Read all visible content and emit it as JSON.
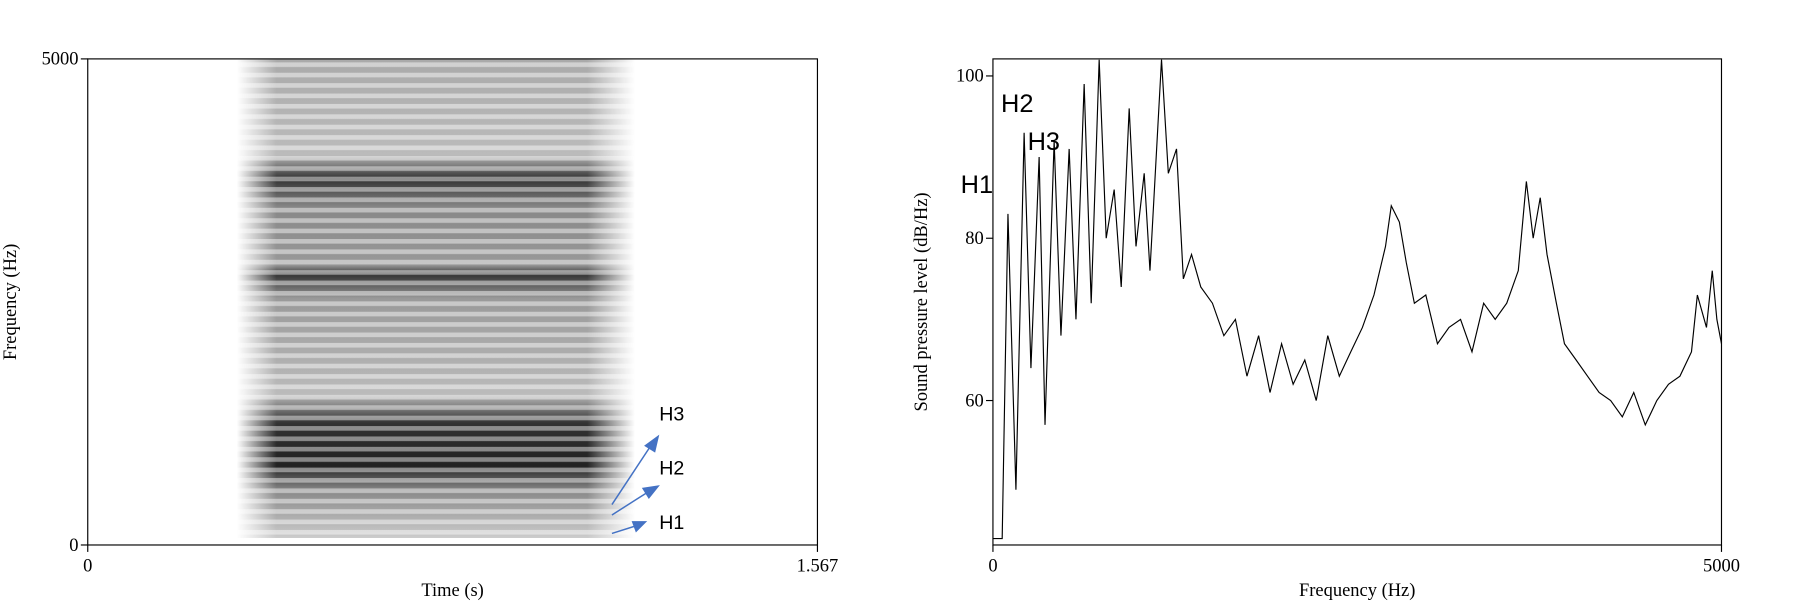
{
  "chart_data": [
    {
      "type": "spectrogram",
      "xlabel": "Time (s)",
      "ylabel": "Frequency (Hz)",
      "xlim": [
        0,
        1.567
      ],
      "ylim": [
        0,
        5000
      ],
      "xticks": [
        0,
        1.567
      ],
      "yticks": [
        0,
        5000
      ],
      "annotations": [
        "H3",
        "H2",
        "H1"
      ],
      "annotation_color": "#ff0000",
      "arrow_color": "#4472c4"
    },
    {
      "type": "line",
      "xlabel": "Frequency (Hz)",
      "ylabel": "Sound pressure level (dB/Hz)",
      "xlim": [
        0,
        5000
      ],
      "ylim": [
        42.2,
        102.1
      ],
      "xticks": [
        0,
        5000
      ],
      "yticks": [
        60,
        80,
        100
      ],
      "color": "#000000",
      "annotations": [
        "H1",
        "H2",
        "H3"
      ],
      "annotation_color": "#ff0000",
      "x": [
        0,
        63,
        103,
        158,
        214,
        261,
        317,
        357,
        420,
        467,
        523,
        570,
        626,
        674,
        729,
        777,
        832,
        880,
        935,
        982,
        1038,
        1078,
        1157,
        1204,
        1260,
        1307,
        1363,
        1426,
        1506,
        1585,
        1664,
        1743,
        1823,
        1902,
        1981,
        2060,
        2140,
        2219,
        2298,
        2377,
        2456,
        2536,
        2615,
        2694,
        2734,
        2789,
        2837,
        2892,
        2971,
        3051,
        3130,
        3209,
        3288,
        3368,
        3447,
        3526,
        3605,
        3661,
        3708,
        3756,
        3803,
        3867,
        3922,
        4002,
        4081,
        4160,
        4239,
        4319,
        4398,
        4477,
        4556,
        4636,
        4715,
        4794,
        4834,
        4897,
        4937,
        4968,
        5000
      ],
      "values": [
        43,
        43,
        83,
        49,
        93,
        64,
        90,
        57,
        92,
        68,
        91,
        70,
        99,
        72,
        102,
        80,
        86,
        74,
        96,
        79,
        88,
        76,
        102,
        88,
        91,
        75,
        78,
        74,
        72,
        68,
        70,
        63,
        68,
        61,
        67,
        62,
        65,
        60,
        68,
        63,
        66,
        69,
        73,
        79,
        84,
        82,
        77,
        72,
        73,
        67,
        69,
        70,
        66,
        72,
        70,
        72,
        76,
        87,
        80,
        85,
        78,
        72,
        67,
        65,
        63,
        61,
        60,
        58,
        61,
        57,
        60,
        62,
        63,
        66,
        73,
        69,
        76,
        70,
        67
      ]
    }
  ]
}
